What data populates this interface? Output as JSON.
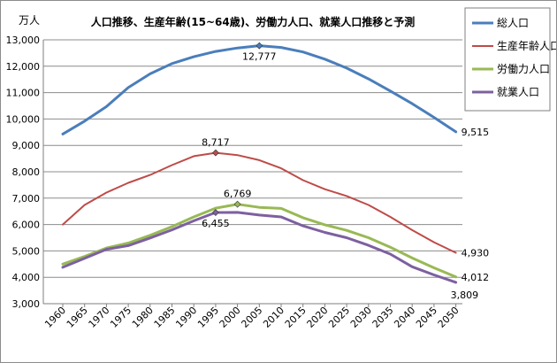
{
  "chart_data": {
    "type": "line",
    "title": "人口推移、生産年齢(15~64歳)、労働力人口、就業人口推移と予測",
    "ylabel": "万人",
    "xlabel": "",
    "ylim": [
      3000,
      13000
    ],
    "yticks": [
      "3,000",
      "4,000",
      "5,000",
      "6,000",
      "7,000",
      "8,000",
      "9,000",
      "10,000",
      "11,000",
      "12,000",
      "13,000"
    ],
    "ytick_values": [
      3000,
      4000,
      5000,
      6000,
      7000,
      8000,
      9000,
      10000,
      11000,
      12000,
      13000
    ],
    "x": [
      "1960",
      "1965",
      "1970",
      "1975",
      "1980",
      "1985",
      "1990",
      "1995",
      "2000",
      "2005",
      "2010",
      "2015",
      "2020",
      "2025",
      "2030",
      "2035",
      "2040",
      "2045",
      "2050"
    ],
    "grid": true,
    "legend_position": "top-right",
    "series": [
      {
        "name": "総人口",
        "color": "#4a7ebb",
        "width": 3,
        "values": [
          9430,
          9920,
          10470,
          11190,
          11710,
          12100,
          12360,
          12560,
          12690,
          12777,
          12710,
          12540,
          12270,
          11930,
          11520,
          11060,
          10580,
          10060,
          9515
        ]
      },
      {
        "name": "生産年齢人口",
        "color": "#be4b48",
        "width": 2,
        "values": [
          6000,
          6740,
          7210,
          7580,
          7880,
          8250,
          8590,
          8717,
          8630,
          8440,
          8130,
          7680,
          7340,
          7080,
          6740,
          6290,
          5790,
          5330,
          4930
        ]
      },
      {
        "name": "労働力人口",
        "color": "#98b954",
        "width": 3,
        "values": [
          4500,
          4790,
          5110,
          5300,
          5590,
          5920,
          6290,
          6620,
          6769,
          6650,
          6610,
          6260,
          5990,
          5780,
          5500,
          5140,
          4730,
          4360,
          4012
        ]
      },
      {
        "name": "就業人口",
        "color": "#7d60a0",
        "width": 3,
        "values": [
          4380,
          4720,
          5060,
          5200,
          5490,
          5800,
          6140,
          6455,
          6460,
          6360,
          6290,
          5950,
          5700,
          5500,
          5210,
          4880,
          4400,
          4090,
          3809
        ]
      }
    ],
    "annotations": [
      {
        "series": 0,
        "index": 9,
        "text": "12,777",
        "pos": "below"
      },
      {
        "series": 0,
        "index": 18,
        "text": "9,515",
        "pos": "right"
      },
      {
        "series": 1,
        "index": 7,
        "text": "8,717",
        "pos": "above"
      },
      {
        "series": 1,
        "index": 18,
        "text": "4,930",
        "pos": "right"
      },
      {
        "series": 2,
        "index": 8,
        "text": "6,769",
        "pos": "above"
      },
      {
        "series": 2,
        "index": 18,
        "text": "4,012",
        "pos": "right"
      },
      {
        "series": 3,
        "index": 7,
        "text": "6,455",
        "pos": "below"
      },
      {
        "series": 3,
        "index": 18,
        "text": "3,809",
        "pos": "below-right"
      }
    ]
  }
}
